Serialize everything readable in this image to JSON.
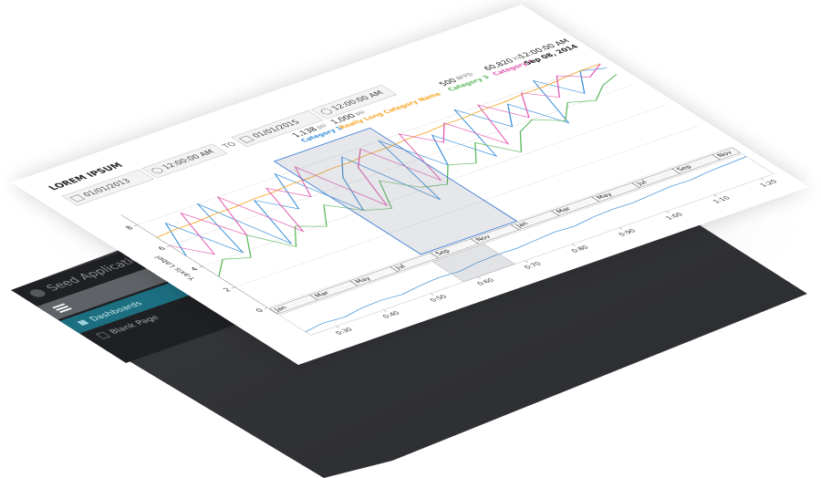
{
  "sidebar": {
    "app_title": "Seed Application",
    "items": [
      "Dashboards",
      "Blank Page"
    ]
  },
  "panel": {
    "title": "LOREM IPSUM",
    "from_date": "01/01/2013",
    "from_time": "12:00:00 AM",
    "to_label": "TO",
    "to_date": "01/01/2015",
    "to_time": "12:00:00 AM",
    "legend": [
      {
        "value": "1,138",
        "unit": "psi",
        "name": "Category 1"
      },
      {
        "value": "1,000",
        "unit": "psi",
        "name": "Really Long Category Name"
      },
      {
        "value": "500",
        "unit": "BFPD",
        "name": "Category 3"
      },
      {
        "value": "60,820",
        "unit": "kV",
        "name": "Category 4"
      }
    ],
    "timestamp": {
      "time": "12:00:00 AM",
      "date": "Sep 08, 2014"
    }
  },
  "chart_data": {
    "type": "line",
    "y_label": "Y-axis Label",
    "categories": [
      "Jan",
      null,
      "Mar",
      null,
      "May",
      null,
      "Jul",
      null,
      "Sep",
      null,
      "Nov",
      null,
      "Jan",
      null,
      "Mar",
      null,
      "May",
      null,
      "Jul",
      null,
      "Sep",
      null,
      "Nov",
      null
    ],
    "ylim": [
      0,
      9
    ],
    "yticks": [
      0,
      2,
      4,
      6,
      8
    ],
    "grid": true,
    "series": [
      {
        "name": "Category 1",
        "color": "#3a8fd9",
        "values": [
          5,
          7.5,
          4,
          8,
          3.5,
          7,
          5.5,
          8.2,
          4,
          6.5,
          7.8,
          3,
          8,
          5,
          7.2,
          4.5,
          8.3,
          6,
          7.5,
          5,
          8.4,
          6.5,
          8,
          7.6
        ]
      },
      {
        "name": "Really Long Category Name",
        "color": "#f5a623",
        "values": [
          6.8,
          6.9,
          6.9,
          7,
          7,
          7.1,
          7.1,
          7.2,
          7.2,
          7.3,
          7.3,
          7.4,
          7.4,
          7.5,
          7.5,
          7.6,
          7.6,
          7.7,
          7.7,
          7.8,
          7.8,
          7.9,
          8,
          8
        ]
      },
      {
        "name": "Category 3",
        "color": "#5cb85c",
        "values": [
          3,
          4,
          3.5,
          5,
          3.2,
          4.5,
          3.8,
          5.2,
          4,
          3.5,
          5.5,
          4.2,
          3.8,
          5,
          4.5,
          5.8,
          4.2,
          5.5,
          6,
          5.2,
          6.3,
          5.8,
          6.6,
          7
        ]
      },
      {
        "name": "Category 4",
        "color": "#e05ab0",
        "values": [
          6,
          4.5,
          7.8,
          5,
          8,
          4,
          7.5,
          6,
          8.2,
          3.8,
          6.8,
          7.9,
          4.2,
          8,
          6.5,
          7.7,
          5,
          8.1,
          6.2,
          7.9,
          6.8,
          8.2,
          7.4,
          8
        ]
      }
    ],
    "navigator": {
      "color": "#3a8fd9",
      "ylim": [
        0,
        6
      ],
      "values": [
        1,
        1.5,
        1.2,
        1.8,
        2,
        1.7,
        2.2,
        2.5,
        2.3,
        2.8,
        3,
        2.9,
        3.2,
        3.5,
        3.3,
        3.8,
        4,
        3.9,
        4.2,
        4.5,
        4.4,
        4.8,
        5,
        5.2
      ],
      "time_labels": [
        "0:30",
        "0:40",
        "0:50",
        "0:60",
        "0:70",
        "0:80",
        "0:90",
        "1:00",
        "1:10",
        "1:20"
      ]
    }
  }
}
